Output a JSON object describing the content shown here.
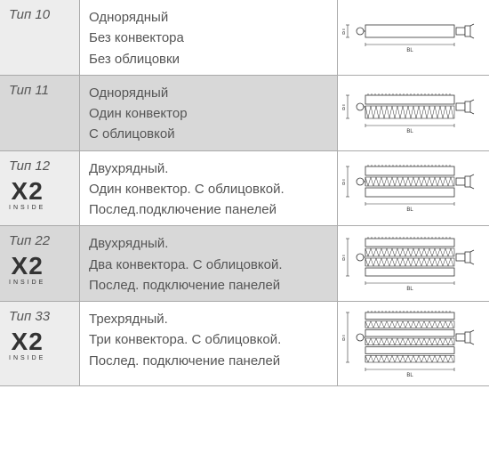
{
  "rows": [
    {
      "type_label": "Тип 10",
      "has_x2": false,
      "desc_lines": [
        "Однорядный",
        "Без конвектора",
        "Без облицовки"
      ],
      "diagram": {
        "layers": 1,
        "convectors": 0
      }
    },
    {
      "type_label": "Тип 11",
      "has_x2": false,
      "desc_lines": [
        "Однорядный",
        "Один конвектор",
        "С облицовкой"
      ],
      "diagram": {
        "layers": 1,
        "convectors": 1
      }
    },
    {
      "type_label": "Тип 12",
      "has_x2": true,
      "desc_lines": [
        "Двухрядный.",
        "Один конвектор. С облицовкой.",
        "Послед.подключение панелей"
      ],
      "diagram": {
        "layers": 2,
        "convectors": 1
      }
    },
    {
      "type_label": "Тип 22",
      "has_x2": true,
      "desc_lines": [
        "Двухрядный.",
        "Два конвектора. С облицовкой.",
        "Послед. подключение панелей"
      ],
      "diagram": {
        "layers": 2,
        "convectors": 2
      }
    },
    {
      "type_label": "Тип 33",
      "has_x2": true,
      "desc_lines": [
        "Трехрядный.",
        "Три конвектора. С облицовкой.",
        "Послед. подключение панелей"
      ],
      "diagram": {
        "layers": 3,
        "convectors": 3
      }
    }
  ],
  "x2_badge": {
    "text": "X2",
    "sub": "INSIDE"
  },
  "diagram_labels": {
    "bt": "BT",
    "bl": "BL"
  },
  "colors": {
    "row_alt_bg": "#d8d8d8",
    "row_bg": "#ffffff",
    "label_alt_bg": "#c0c0c0",
    "label_bg": "#ededed",
    "border": "#aaaaaa",
    "text": "#555555",
    "diagram_stroke": "#333333",
    "diagram_fill": "#ffffff"
  }
}
